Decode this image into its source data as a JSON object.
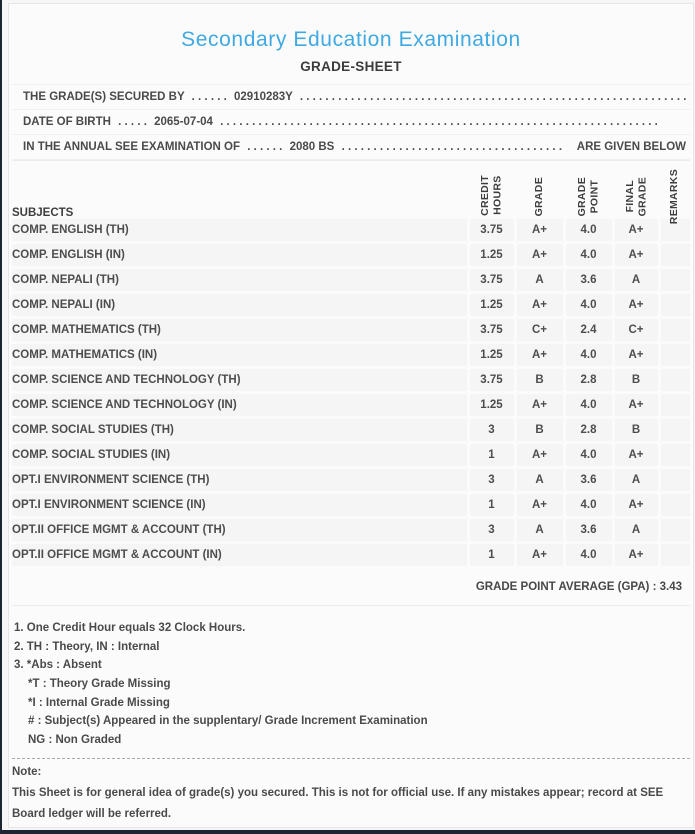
{
  "header": {
    "title": "Secondary Education Examination",
    "subtitle": "GRADE-SHEET"
  },
  "info_lines": [
    {
      "label": "THE GRADE(S) SECURED BY",
      "dots_before": ". . . . . .",
      "value": "02910283Y",
      "dots_after": ". . . . . . . . . . . . . . . . . . . . . . . . . . . . . . . . . . . . . . . . . . . . . . . . . . . . . . . . . . . . . . . . . . . . . . . .",
      "suffix": ""
    },
    {
      "label": "DATE OF BIRTH",
      "dots_before": ". . . . .",
      "value": "2065-07-04",
      "dots_after": ". . . . . . . . . . . . . . . . . . . . . . . . . . . . . . . . . . . . . . . . . . . . . . . . . . . . . . . . . . . . . . . . . . . . . . . . . . . . . .",
      "suffix": ""
    },
    {
      "label": "IN THE ANNUAL SEE EXAMINATION OF",
      "dots_before": ". . . . . .",
      "value": "2080 BS",
      "dots_after": ". . . . . . . . . . . . . . . . . . . . . . . . . . . . . . . . . . . . . . . .",
      "suffix": "ARE GIVEN BELOW . . ."
    }
  ],
  "table": {
    "columns": [
      "SUBJECTS",
      "CREDIT\nHOURS",
      "GRADE",
      "GRADE\nPOINT",
      "FINAL\nGRADE",
      "REMARKS"
    ],
    "rows": [
      {
        "subject": "COMP. ENGLISH (TH)",
        "credit_hours": "3.75",
        "grade": "A+",
        "grade_point": "4.0",
        "final_grade": "A+",
        "remarks": ""
      },
      {
        "subject": "COMP. ENGLISH (IN)",
        "credit_hours": "1.25",
        "grade": "A+",
        "grade_point": "4.0",
        "final_grade": "A+",
        "remarks": ""
      },
      {
        "subject": "COMP. NEPALI (TH)",
        "credit_hours": "3.75",
        "grade": "A",
        "grade_point": "3.6",
        "final_grade": "A",
        "remarks": ""
      },
      {
        "subject": "COMP. NEPALI (IN)",
        "credit_hours": "1.25",
        "grade": "A+",
        "grade_point": "4.0",
        "final_grade": "A+",
        "remarks": ""
      },
      {
        "subject": "COMP. MATHEMATICS (TH)",
        "credit_hours": "3.75",
        "grade": "C+",
        "grade_point": "2.4",
        "final_grade": "C+",
        "remarks": ""
      },
      {
        "subject": "COMP. MATHEMATICS (IN)",
        "credit_hours": "1.25",
        "grade": "A+",
        "grade_point": "4.0",
        "final_grade": "A+",
        "remarks": ""
      },
      {
        "subject": "COMP. SCIENCE AND TECHNOLOGY (TH)",
        "credit_hours": "3.75",
        "grade": "B",
        "grade_point": "2.8",
        "final_grade": "B",
        "remarks": ""
      },
      {
        "subject": "COMP. SCIENCE AND TECHNOLOGY (IN)",
        "credit_hours": "1.25",
        "grade": "A+",
        "grade_point": "4.0",
        "final_grade": "A+",
        "remarks": ""
      },
      {
        "subject": "COMP. SOCIAL STUDIES (TH)",
        "credit_hours": "3",
        "grade": "B",
        "grade_point": "2.8",
        "final_grade": "B",
        "remarks": ""
      },
      {
        "subject": "COMP. SOCIAL STUDIES (IN)",
        "credit_hours": "1",
        "grade": "A+",
        "grade_point": "4.0",
        "final_grade": "A+",
        "remarks": ""
      },
      {
        "subject": "OPT.I ENVIRONMENT SCIENCE (TH)",
        "credit_hours": "3",
        "grade": "A",
        "grade_point": "3.6",
        "final_grade": "A",
        "remarks": ""
      },
      {
        "subject": "OPT.I ENVIRONMENT SCIENCE (IN)",
        "credit_hours": "1",
        "grade": "A+",
        "grade_point": "4.0",
        "final_grade": "A+",
        "remarks": ""
      },
      {
        "subject": "OPT.II OFFICE MGMT & ACCOUNT (TH)",
        "credit_hours": "3",
        "grade": "A",
        "grade_point": "3.6",
        "final_grade": "A",
        "remarks": ""
      },
      {
        "subject": "OPT.II OFFICE MGMT & ACCOUNT (IN)",
        "credit_hours": "1",
        "grade": "A+",
        "grade_point": "4.0",
        "final_grade": "A+",
        "remarks": ""
      }
    ],
    "footer": {
      "gpa_label": "GRADE POINT AVERAGE (GPA) : ",
      "gpa_value": "3.43"
    }
  },
  "notes": [
    {
      "text": "1. One Credit Hour equals 32 Clock Hours.",
      "indent": false
    },
    {
      "text": "2. TH : Theory, IN : Internal",
      "indent": false
    },
    {
      "text": "3. *Abs : Absent",
      "indent": false
    },
    {
      "text": "*T : Theory Grade Missing",
      "indent": true
    },
    {
      "text": "*I : Internal Grade Missing",
      "indent": true
    },
    {
      "text": "# : Subject(s) Appeared in the supplentary/ Grade Increment Examination",
      "indent": true
    },
    {
      "text": "NG : Non Graded",
      "indent": true
    }
  ],
  "note_block": {
    "heading": "Note:",
    "text": "This Sheet is for general idea of grade(s) you secured. This is not for official use. If any mistakes appear; record at SEE Board ledger will be referred."
  },
  "colors": {
    "title_blue": "#3ea9e2",
    "text_dark": "#4a4a4a",
    "row_background": "#f6f5f5",
    "window_edge": "#1b2631"
  }
}
